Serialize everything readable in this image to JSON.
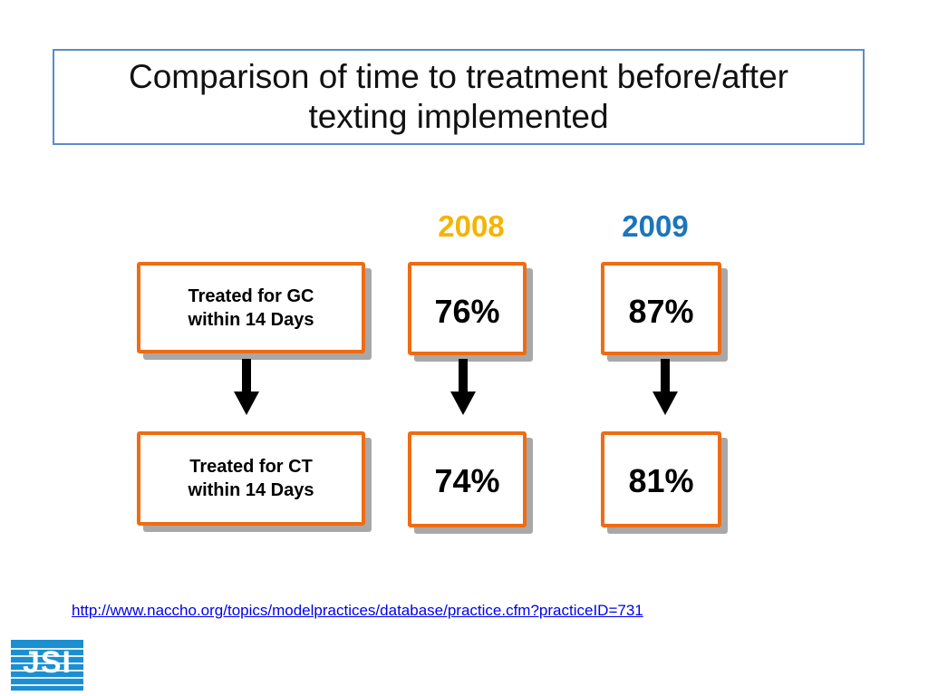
{
  "title": {
    "line1": "Comparison of time to treatment before/after",
    "line2": "texting implemented"
  },
  "years": [
    {
      "label": "2008",
      "color": "#f5b400"
    },
    {
      "label": "2009",
      "color": "#1b75bc"
    }
  ],
  "rows": [
    {
      "label_line1": "Treated for GC",
      "label_line2": "within 14 Days",
      "values": [
        "76%",
        "87%"
      ]
    },
    {
      "label_line1": "Treated for CT",
      "label_line2": "within 14 Days",
      "values": [
        "74%",
        "81%"
      ]
    }
  ],
  "link_text": "http://www.naccho.org/topics/modelpractices/database/practice.cfm?practiceID=731",
  "logo_text": "JSI",
  "colors": {
    "box_border": "#ef6c13",
    "title_border": "#5b8cc6",
    "logo_bg": "#1b8fd2"
  }
}
